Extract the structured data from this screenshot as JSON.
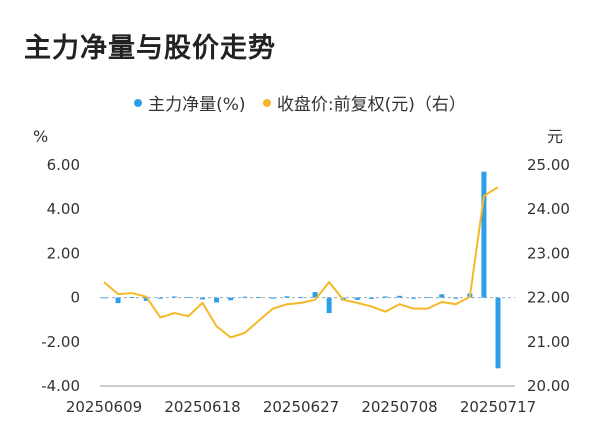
{
  "chart_data": {
    "type": "bar+line",
    "title": "主力净量与股价走势",
    "legend": [
      {
        "label": "主力净量(%)",
        "color": "#2d9ee8"
      },
      {
        "label": "收盘价:前复权(元)（右）",
        "color": "#f6b826"
      }
    ],
    "left_axis": {
      "unit": "%",
      "ticks": [
        "6.00",
        "4.00",
        "2.00",
        "0",
        "-2.00",
        "-4.00"
      ],
      "min": -4,
      "max": 6
    },
    "right_axis": {
      "unit": "元",
      "ticks": [
        "25.00",
        "24.00",
        "23.00",
        "22.00",
        "21.00",
        "20.00"
      ],
      "min": 20,
      "max": 25
    },
    "x_labels": [
      "20250609",
      "20250618",
      "20250627",
      "20250708",
      "20250717"
    ],
    "x": [
      "20250609",
      "20250610",
      "20250611",
      "20250612",
      "20250613",
      "20250616",
      "20250617",
      "20250618",
      "20250619",
      "20250620",
      "20250623",
      "20250624",
      "20250625",
      "20250626",
      "20250627",
      "20250630",
      "20250701",
      "20250702",
      "20250703",
      "20250704",
      "20250707",
      "20250708",
      "20250709",
      "20250710",
      "20250711",
      "20250714",
      "20250715",
      "20250716",
      "20250717"
    ],
    "series": [
      {
        "name": "主力净量(%)",
        "type": "bar",
        "axis": "left",
        "values": [
          0.0,
          -0.25,
          0.02,
          -0.15,
          -0.05,
          0.05,
          0.03,
          -0.08,
          -0.22,
          -0.12,
          0.04,
          0.02,
          -0.05,
          0.06,
          0.03,
          0.25,
          -0.7,
          -0.12,
          -0.1,
          -0.06,
          0.05,
          0.08,
          -0.05,
          0.02,
          0.15,
          -0.05,
          0.18,
          5.7,
          -3.2
        ]
      },
      {
        "name": "收盘价:前复权(元)（右）",
        "type": "line",
        "axis": "right",
        "values": [
          22.35,
          22.08,
          22.1,
          22.02,
          21.55,
          21.65,
          21.58,
          21.88,
          21.35,
          21.1,
          21.2,
          21.48,
          21.75,
          21.85,
          21.88,
          21.95,
          22.35,
          21.95,
          21.88,
          21.8,
          21.68,
          21.85,
          21.75,
          21.75,
          21.9,
          21.85,
          22.02,
          24.3,
          24.5
        ]
      }
    ],
    "grid": false
  }
}
